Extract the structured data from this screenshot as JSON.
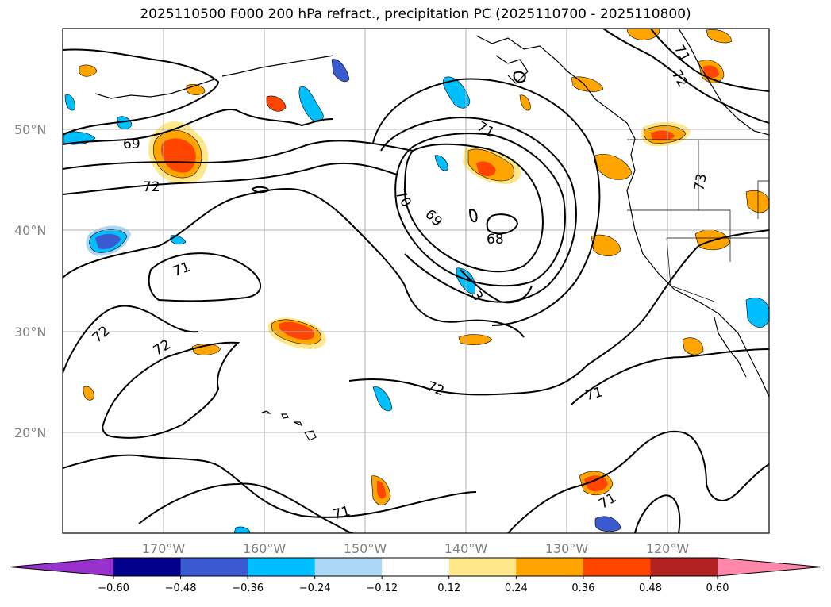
{
  "title": "2025110500 F000 200 hPa refract., precipitation PC (2025110700 - 2025110800)",
  "lat_labels": [
    "50°N",
    "40°N",
    "30°N",
    "20°N"
  ],
  "lon_labels": [
    "170°W",
    "160°W",
    "150°W",
    "140°W",
    "130°W",
    "120°W"
  ],
  "contour_labels": [
    "69",
    "72",
    "71",
    "72",
    "72",
    "70",
    "69",
    "68",
    "71",
    "72",
    "73",
    "71",
    "72",
    "71",
    "71",
    "71",
    "3"
  ],
  "colorbar": {
    "ticks": [
      "−0.60",
      "−0.48",
      "−0.36",
      "−0.24",
      "−0.12",
      "0.12",
      "0.24",
      "0.36",
      "0.48",
      "0.60"
    ],
    "colors": [
      "#9932cc",
      "#00008b",
      "#3a5bd0",
      "#00bfff",
      "#add8f5",
      "#ffffff",
      "#ffe88a",
      "#ffa500",
      "#ff4500",
      "#b22222",
      "#ff88aa"
    ]
  },
  "chart_data": {
    "type": "contour-map",
    "title": "2025110500 F000 200 hPa refract., precipitation PC (2025110700 - 2025110800)",
    "extent": {
      "lon": [
        -180,
        -110
      ],
      "lat": [
        10,
        60
      ]
    },
    "contour_levels_shown": [
      68,
      69,
      70,
      71,
      72,
      73
    ],
    "fill_levels": [
      -0.6,
      -0.48,
      -0.36,
      -0.24,
      -0.12,
      0.12,
      0.24,
      0.36,
      0.48,
      0.6
    ]
  }
}
